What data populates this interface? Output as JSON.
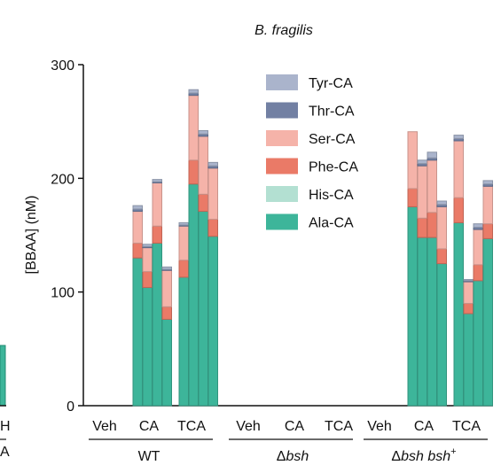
{
  "chart_data": {
    "type": "bar",
    "stacked": true,
    "title": "B. fragilis",
    "ylabel": "[BBAA] (nM)",
    "ylim": [
      0,
      300
    ],
    "yticks": [
      "0",
      "100",
      "200",
      "300"
    ],
    "legend_position": "top-center",
    "series_order": [
      "Ala-CA",
      "His-CA",
      "Phe-CA",
      "Ser-CA",
      "Thr-CA",
      "Tyr-CA"
    ],
    "legend": [
      {
        "name": "Tyr-CA",
        "color": "#aab4cc"
      },
      {
        "name": "Thr-CA",
        "color": "#7280a3"
      },
      {
        "name": "Ser-CA",
        "color": "#f5b3a9"
      },
      {
        "name": "Phe-CA",
        "color": "#ea7a67"
      },
      {
        "name": "His-CA",
        "color": "#b3e0d2"
      },
      {
        "name": "Ala-CA",
        "color": "#3db59a"
      }
    ],
    "groups": [
      {
        "label": "WT",
        "label_italic": "",
        "label_sup": "",
        "treatments": [
          {
            "label": "Veh",
            "bars": []
          },
          {
            "label": "CA",
            "bars": [
              {
                "Ala-CA": 130,
                "His-CA": 0,
                "Phe-CA": 13,
                "Ser-CA": 28,
                "Thr-CA": 2,
                "Tyr-CA": 3
              },
              {
                "Ala-CA": 104,
                "His-CA": 0,
                "Phe-CA": 14,
                "Ser-CA": 21,
                "Thr-CA": 1,
                "Tyr-CA": 2
              },
              {
                "Ala-CA": 143,
                "His-CA": 0,
                "Phe-CA": 15,
                "Ser-CA": 38,
                "Thr-CA": 1,
                "Tyr-CA": 2
              },
              {
                "Ala-CA": 76,
                "His-CA": 0,
                "Phe-CA": 11,
                "Ser-CA": 32,
                "Thr-CA": 1,
                "Tyr-CA": 2
              }
            ]
          },
          {
            "label": "TCA",
            "bars": [
              {
                "Ala-CA": 113,
                "His-CA": 0,
                "Phe-CA": 15,
                "Ser-CA": 30,
                "Thr-CA": 1,
                "Tyr-CA": 2
              },
              {
                "Ala-CA": 195,
                "His-CA": 0,
                "Phe-CA": 21,
                "Ser-CA": 57,
                "Thr-CA": 2,
                "Tyr-CA": 3
              },
              {
                "Ala-CA": 171,
                "His-CA": 0,
                "Phe-CA": 15,
                "Ser-CA": 51,
                "Thr-CA": 2,
                "Tyr-CA": 3
              },
              {
                "Ala-CA": 149,
                "His-CA": 0,
                "Phe-CA": 15,
                "Ser-CA": 45,
                "Thr-CA": 2,
                "Tyr-CA": 3
              }
            ]
          }
        ]
      },
      {
        "label": "Δ",
        "label_italic": "bsh",
        "label_sup": "",
        "treatments": [
          {
            "label": "Veh",
            "bars": []
          },
          {
            "label": "CA",
            "bars": []
          },
          {
            "label": "TCA",
            "bars": []
          }
        ]
      },
      {
        "label": "Δ",
        "label_italic": "bsh bsh",
        "label_sup": "+",
        "treatments": [
          {
            "label": "Veh",
            "bars": []
          },
          {
            "label": "CA",
            "bars": [
              {
                "Ala-CA": 175,
                "His-CA": 0,
                "Phe-CA": 16,
                "Ser-CA": 50,
                "Thr-CA": 0,
                "Tyr-CA": 0
              },
              {
                "Ala-CA": 148,
                "His-CA": 0,
                "Phe-CA": 17,
                "Ser-CA": 46,
                "Thr-CA": 2,
                "Tyr-CA": 3
              },
              {
                "Ala-CA": 148,
                "His-CA": 0,
                "Phe-CA": 22,
                "Ser-CA": 46,
                "Thr-CA": 2,
                "Tyr-CA": 5
              },
              {
                "Ala-CA": 125,
                "His-CA": 0,
                "Phe-CA": 13,
                "Ser-CA": 37,
                "Thr-CA": 2,
                "Tyr-CA": 3
              }
            ]
          },
          {
            "label": "TCA",
            "bars": [
              {
                "Ala-CA": 161,
                "His-CA": 0,
                "Phe-CA": 22,
                "Ser-CA": 50,
                "Thr-CA": 2,
                "Tyr-CA": 3
              },
              {
                "Ala-CA": 81,
                "His-CA": 0,
                "Phe-CA": 9,
                "Ser-CA": 19,
                "Thr-CA": 1,
                "Tyr-CA": 1
              },
              {
                "Ala-CA": 110,
                "His-CA": 0,
                "Phe-CA": 14,
                "Ser-CA": 31,
                "Thr-CA": 2,
                "Tyr-CA": 3
              },
              {
                "Ala-CA": 147,
                "His-CA": 0,
                "Phe-CA": 13,
                "Ser-CA": 33,
                "Thr-CA": 2,
                "Tyr-CA": 3
              }
            ]
          }
        ]
      }
    ],
    "neighbor_panel_fragments": [
      {
        "text": "H"
      },
      {
        "text": "A"
      }
    ]
  }
}
